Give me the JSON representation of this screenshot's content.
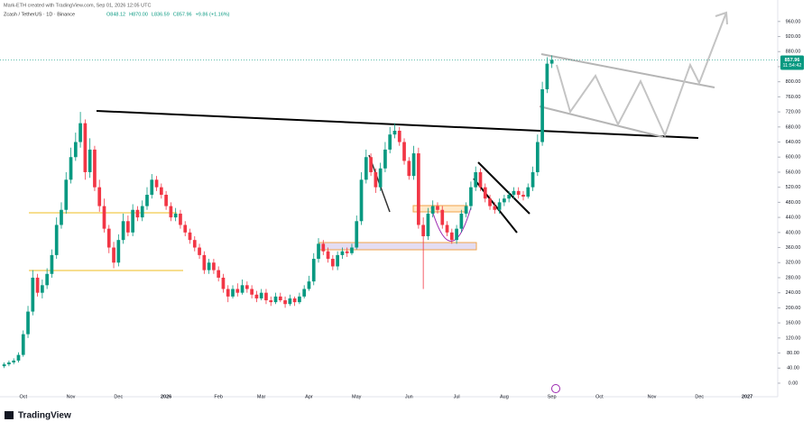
{
  "header": {
    "credit": "Mark-ETH created with TradingView.com, Sep 01, 2026 12:05 UTC",
    "symbol": "Zcash / TetherUS · 1D · Binance",
    "ohlc": [
      "O848.12",
      "H870.00",
      "L836.59",
      "C857.96",
      "+9.86 (+1.16%)"
    ]
  },
  "countdown": "11:54:42",
  "brand": "TradingView",
  "chart_data": {
    "type": "candlestick",
    "categories": [
      null,
      null,
      null,
      null,
      "Oct",
      null,
      null,
      null,
      null,
      null,
      null,
      null,
      null,
      null,
      "Nov",
      null,
      null,
      null,
      null,
      null,
      null,
      null,
      null,
      null,
      "Dec",
      null,
      null,
      null,
      null,
      null,
      null,
      null,
      null,
      null,
      "2026",
      null,
      null,
      null,
      null,
      null,
      null,
      null,
      null,
      null,
      null,
      "Feb",
      null,
      null,
      null,
      null,
      null,
      null,
      null,
      null,
      "Mar",
      null,
      null,
      null,
      null,
      null,
      null,
      null,
      null,
      null,
      "Apr",
      null,
      null,
      null,
      null,
      null,
      null,
      null,
      null,
      null,
      "May",
      null,
      null,
      null,
      null,
      null,
      null,
      null,
      null,
      null,
      null,
      "Jun",
      null,
      null,
      null,
      null,
      null,
      null,
      null,
      null,
      null,
      "Jul",
      null,
      null,
      null,
      null,
      null,
      null,
      null,
      null,
      null,
      "Aug",
      null,
      null,
      null,
      null,
      null,
      null,
      null,
      null,
      null,
      "Sep",
      null,
      null,
      null,
      null,
      null,
      null,
      null,
      null,
      null,
      "Oct",
      null,
      null,
      null,
      null,
      null,
      null,
      null,
      null,
      null,
      null,
      "Nov",
      null,
      null,
      null,
      null,
      null,
      null,
      null,
      null,
      null,
      "Dec",
      null,
      null,
      null,
      null,
      null,
      null,
      null,
      null,
      null,
      "2027",
      null
    ],
    "open": [
      45,
      50,
      55,
      60,
      75,
      130,
      190,
      280,
      240,
      260,
      290,
      340,
      420,
      460,
      540,
      600,
      640,
      690,
      560,
      620,
      520,
      470,
      410,
      360,
      320,
      380,
      430,
      400,
      460,
      440,
      470,
      500,
      540,
      520,
      500,
      470,
      440,
      450,
      420,
      400,
      380,
      360,
      340,
      300,
      320,
      300,
      280,
      250,
      230,
      250,
      240,
      260,
      250,
      235,
      225,
      240,
      220,
      215,
      230,
      220,
      210,
      225,
      215,
      230,
      250,
      270,
      330,
      370,
      350,
      330,
      310,
      340,
      350,
      345,
      360,
      430,
      540,
      600,
      560,
      520,
      570,
      620,
      660,
      670,
      640,
      590,
      550,
      610,
      420,
      390,
      450,
      470,
      460,
      420,
      400,
      380,
      410,
      450,
      470,
      520,
      560,
      520,
      490,
      470,
      460,
      480,
      490,
      500,
      510,
      500,
      495,
      520,
      560,
      640,
      780,
      848.12,
      null,
      null,
      null,
      null,
      null,
      null,
      null,
      null,
      null,
      null,
      null,
      null,
      null,
      null,
      null,
      null,
      null,
      null,
      null,
      null,
      null,
      null,
      null,
      null,
      null,
      null,
      null,
      null,
      null,
      null,
      null,
      null,
      null,
      null,
      null,
      null,
      null,
      null,
      null,
      null,
      null,
      null
    ],
    "high": [
      55,
      60,
      66,
      82,
      140,
      205,
      300,
      290,
      275,
      305,
      355,
      440,
      480,
      560,
      625,
      665,
      720,
      700,
      650,
      630,
      540,
      490,
      420,
      375,
      395,
      450,
      445,
      475,
      470,
      485,
      520,
      555,
      550,
      530,
      510,
      480,
      465,
      460,
      430,
      410,
      390,
      370,
      350,
      330,
      330,
      310,
      290,
      260,
      260,
      265,
      275,
      270,
      260,
      245,
      250,
      250,
      230,
      240,
      240,
      230,
      235,
      230,
      240,
      260,
      285,
      345,
      385,
      380,
      360,
      340,
      350,
      360,
      360,
      370,
      445,
      560,
      620,
      610,
      570,
      585,
      640,
      680,
      690,
      680,
      650,
      600,
      630,
      625,
      440,
      465,
      485,
      480,
      470,
      430,
      410,
      420,
      460,
      480,
      535,
      575,
      570,
      530,
      500,
      480,
      490,
      500,
      510,
      520,
      520,
      510,
      530,
      575,
      660,
      800,
      865,
      870,
      null,
      null,
      null,
      null,
      null,
      null,
      null,
      null,
      null,
      null,
      null,
      null,
      null,
      null,
      null,
      null,
      null,
      null,
      null,
      null,
      null,
      null,
      null,
      null,
      null,
      null,
      null,
      null,
      null,
      null,
      null,
      null,
      null,
      null,
      null,
      null,
      null,
      null,
      null,
      null,
      null,
      null
    ],
    "low": [
      40,
      45,
      50,
      55,
      70,
      120,
      180,
      230,
      225,
      250,
      280,
      330,
      410,
      450,
      530,
      590,
      625,
      540,
      545,
      510,
      455,
      400,
      345,
      305,
      310,
      370,
      390,
      390,
      430,
      430,
      460,
      490,
      510,
      490,
      460,
      430,
      430,
      410,
      390,
      370,
      350,
      330,
      290,
      290,
      290,
      270,
      240,
      215,
      225,
      230,
      235,
      240,
      225,
      215,
      220,
      210,
      205,
      210,
      215,
      200,
      205,
      205,
      210,
      225,
      245,
      260,
      320,
      340,
      320,
      300,
      300,
      330,
      335,
      340,
      355,
      420,
      530,
      550,
      505,
      510,
      560,
      610,
      650,
      630,
      580,
      540,
      540,
      410,
      250,
      380,
      440,
      450,
      410,
      390,
      370,
      370,
      400,
      440,
      460,
      510,
      510,
      480,
      460,
      450,
      450,
      470,
      480,
      490,
      490,
      485,
      490,
      510,
      550,
      630,
      770,
      836.59,
      null,
      null,
      null,
      null,
      null,
      null,
      null,
      null,
      null,
      null,
      null,
      null,
      null,
      null,
      null,
      null,
      null,
      null,
      null,
      null,
      null,
      null,
      null,
      null,
      null,
      null,
      null,
      null,
      null,
      null,
      null,
      null,
      null,
      null,
      null,
      null,
      null,
      null,
      null,
      null,
      null,
      null
    ],
    "close": [
      50,
      55,
      60,
      75,
      130,
      190,
      280,
      240,
      260,
      290,
      340,
      420,
      460,
      540,
      600,
      640,
      690,
      560,
      620,
      520,
      470,
      410,
      360,
      320,
      380,
      430,
      400,
      460,
      440,
      470,
      500,
      540,
      520,
      500,
      470,
      440,
      450,
      420,
      400,
      380,
      360,
      340,
      300,
      320,
      300,
      280,
      250,
      230,
      250,
      240,
      260,
      250,
      235,
      225,
      240,
      220,
      215,
      230,
      220,
      210,
      225,
      215,
      230,
      250,
      270,
      330,
      370,
      350,
      330,
      310,
      340,
      350,
      345,
      360,
      430,
      540,
      600,
      560,
      520,
      570,
      620,
      660,
      670,
      640,
      590,
      550,
      610,
      420,
      390,
      450,
      470,
      460,
      420,
      400,
      380,
      410,
      450,
      470,
      520,
      560,
      520,
      490,
      470,
      460,
      480,
      490,
      500,
      510,
      500,
      495,
      520,
      560,
      640,
      780,
      848,
      857.96,
      null,
      null,
      null,
      null,
      null,
      null,
      null,
      null,
      null,
      null,
      null,
      null,
      null,
      null,
      null,
      null,
      null,
      null,
      null,
      null,
      null,
      null,
      null,
      null,
      null,
      null,
      null,
      null,
      null,
      null,
      null,
      null,
      null,
      null,
      null,
      null,
      null,
      null,
      null,
      null,
      null,
      null
    ],
    "up_color": "#089981",
    "down_color": "#f23645",
    "ylim": [
      -36,
      1017
    ],
    "yticks": [
      {
        "value": 0,
        "label": "0.00"
      },
      {
        "value": 40,
        "label": "40.00"
      },
      {
        "value": 80,
        "label": "80.00"
      },
      {
        "value": 120,
        "label": "120.00"
      },
      {
        "value": 160,
        "label": "160.00"
      },
      {
        "value": 200,
        "label": "200.00"
      },
      {
        "value": 240,
        "label": "240.00"
      },
      {
        "value": 280,
        "label": "280.00"
      },
      {
        "value": 320,
        "label": "320.00"
      },
      {
        "value": 360,
        "label": "360.00"
      },
      {
        "value": 400,
        "label": "400.00"
      },
      {
        "value": 440,
        "label": "440.00"
      },
      {
        "value": 480,
        "label": "480.00"
      },
      {
        "value": 520,
        "label": "520.00"
      },
      {
        "value": 560,
        "label": "560.00"
      },
      {
        "value": 600,
        "label": "600.00"
      },
      {
        "value": 640,
        "label": "640.00"
      },
      {
        "value": 680,
        "label": "680.00"
      },
      {
        "value": 720,
        "label": "720.00"
      },
      {
        "value": 760,
        "label": "760.00"
      },
      {
        "value": 800,
        "label": "800.00"
      },
      {
        "value": 840,
        "label": "840.00"
      },
      {
        "value": 880,
        "label": "880.00"
      },
      {
        "value": 920,
        "label": "920.00"
      },
      {
        "value": 960,
        "label": "960.00"
      }
    ],
    "grid": false
  }
}
